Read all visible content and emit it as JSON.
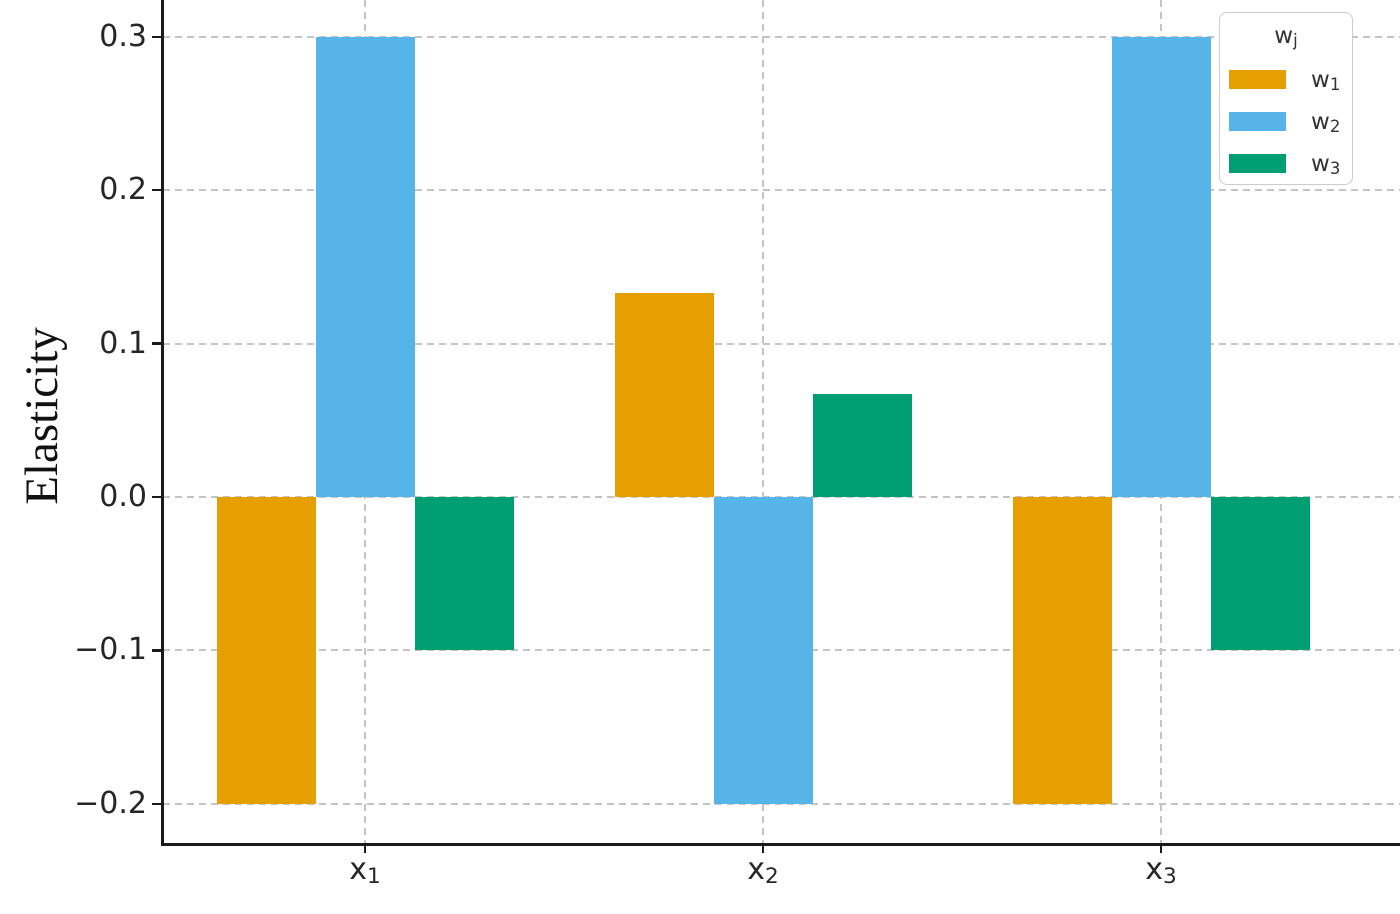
{
  "chart_data": {
    "type": "bar",
    "title": "",
    "xlabel": "",
    "ylabel": "Elasticity",
    "categories": [
      {
        "label": "x₁",
        "base": "x",
        "sub": "1"
      },
      {
        "label": "x₂",
        "base": "x",
        "sub": "2"
      },
      {
        "label": "x₃",
        "base": "x",
        "sub": "3"
      }
    ],
    "series": [
      {
        "name": "w₁",
        "base": "w",
        "sub": "1",
        "color": "#E69F00",
        "values": [
          -0.2,
          0.133,
          -0.2
        ]
      },
      {
        "name": "w₂",
        "base": "w",
        "sub": "2",
        "color": "#56B4E9",
        "values": [
          0.3,
          -0.2,
          0.3
        ]
      },
      {
        "name": "w₃",
        "base": "w",
        "sub": "3",
        "color": "#009E73",
        "values": [
          -0.1,
          0.067,
          -0.1
        ]
      }
    ],
    "legend": {
      "title": "wⱼ",
      "title_base": "w",
      "title_sub": "j",
      "position": "upper-right"
    },
    "yticks": [
      {
        "value": 0.3,
        "label": "0.3"
      },
      {
        "value": 0.2,
        "label": "0.2"
      },
      {
        "value": 0.1,
        "label": "0.1"
      },
      {
        "value": 0.0,
        "label": "0.0"
      },
      {
        "value": -0.1,
        "label": "−0.1"
      },
      {
        "value": -0.2,
        "label": "−0.2"
      }
    ],
    "ylim_visible": [
      -0.2255,
      0.324
    ],
    "grid": {
      "show": true,
      "style": "dashed",
      "axes": "both"
    }
  },
  "colors": {
    "bar_w1": "#E69F00",
    "bar_w2": "#56B4E9",
    "bar_w3": "#009E73",
    "axis": "#1a1a1a",
    "grid": "#c4c4c4",
    "tick_label": "#262626",
    "legend_border": "#cccccc",
    "legend_text": "#333333",
    "background": "#ffffff"
  }
}
